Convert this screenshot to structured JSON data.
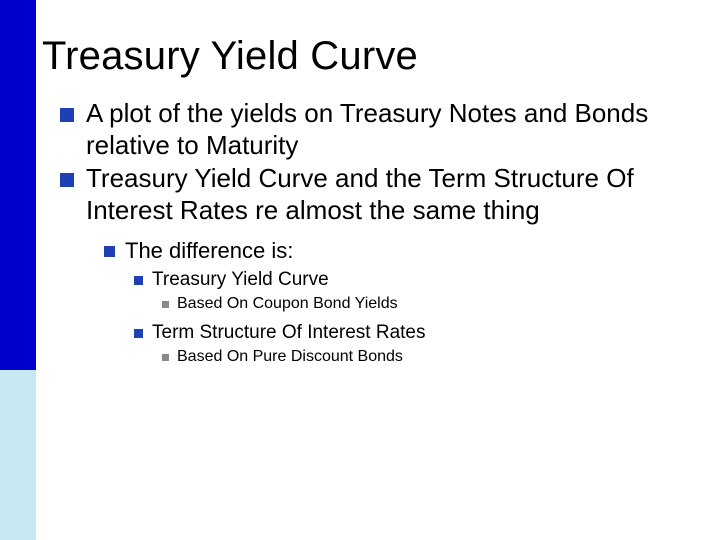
{
  "colors": {
    "sidebar_top": "#0000cc",
    "sidebar_bottom": "#c5e8f2",
    "bullet_blue": "#1f3fb5",
    "bullet_gray": "#898989",
    "text": "#000000",
    "background": "#ffffff"
  },
  "title": "Treasury Yield Curve",
  "bullets": [
    "A plot of the yields on Treasury Notes and Bonds relative to Maturity",
    "Treasury Yield Curve and the Term Structure Of Interest Rates re almost the same thing"
  ],
  "sub1": "The difference is:",
  "diff": [
    {
      "label": "Treasury Yield Curve",
      "detail": "Based On Coupon Bond Yields"
    },
    {
      "label": "Term Structure Of Interest Rates",
      "detail": "Based On Pure Discount Bonds"
    }
  ]
}
